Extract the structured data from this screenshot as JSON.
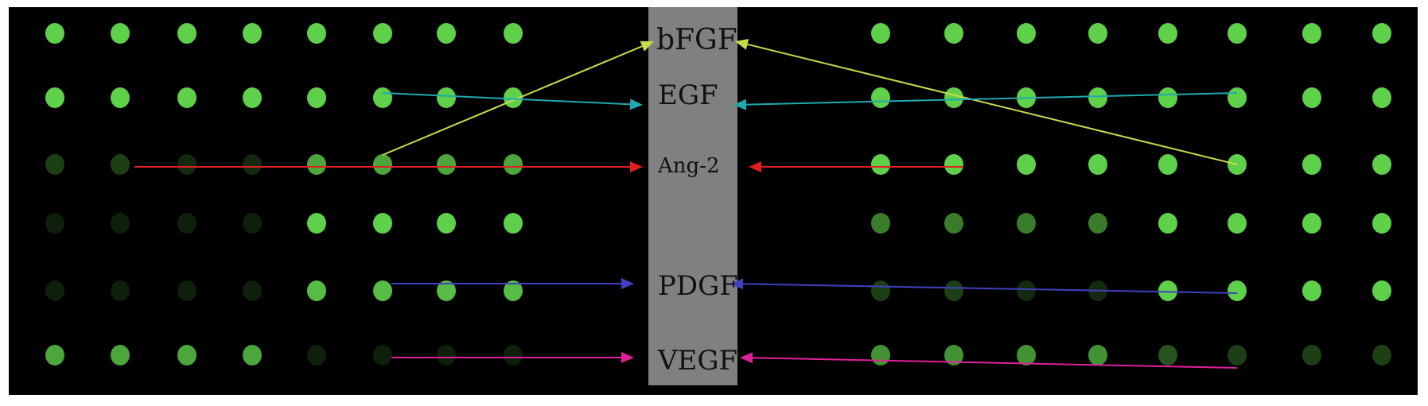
{
  "labels": [
    "bFGF",
    "EGF",
    "Ang-2",
    "PDGF",
    "VEGF"
  ],
  "colors": {
    "background": "#000000",
    "center_band": "#808080",
    "spot": "#5fd04a",
    "bFGF": "#c8dc4a",
    "EGF": "#20a8b0",
    "Ang-2": "#e02020",
    "PDGF": "#4040c0",
    "VEGF": "#e0209a"
  },
  "arrays": {
    "left_intensity": [
      [
        1,
        1,
        1,
        1,
        1,
        1,
        1,
        1
      ],
      [
        1,
        1,
        1,
        1,
        1,
        1,
        1,
        1
      ],
      [
        0.3,
        0.3,
        0.2,
        0.2,
        0.8,
        0.8,
        0.8,
        0.8
      ],
      [
        0.15,
        0.15,
        0.15,
        0.15,
        1,
        1,
        1,
        1
      ],
      [
        0.15,
        0.15,
        0.15,
        0.15,
        0.9,
        0.9,
        0.9,
        0.9
      ],
      [
        0.8,
        0.8,
        0.8,
        0.8,
        0.15,
        0.15,
        0.15,
        0.15
      ]
    ],
    "right_intensity": [
      [
        1,
        1,
        1,
        1,
        1,
        1,
        1,
        1
      ],
      [
        1,
        1,
        1,
        1,
        1,
        1,
        1,
        1
      ],
      [
        1,
        1,
        1,
        1,
        1,
        1,
        1,
        1
      ],
      [
        0.6,
        0.6,
        0.6,
        0.6,
        1,
        1,
        1,
        1
      ],
      [
        0.3,
        0.3,
        0.2,
        0.2,
        1,
        1,
        1,
        1
      ],
      [
        0.7,
        0.7,
        0.7,
        0.7,
        0.4,
        0.3,
        0.3,
        0.3
      ]
    ]
  }
}
